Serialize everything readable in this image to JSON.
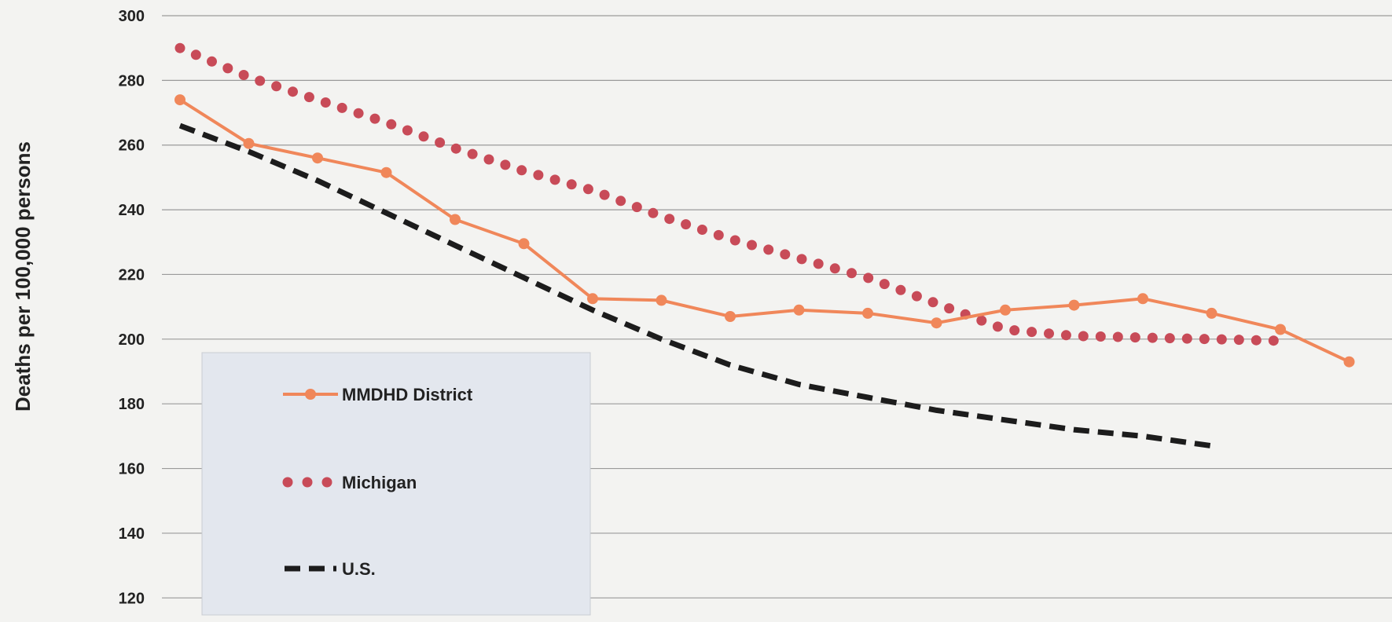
{
  "chart_data": {
    "type": "line",
    "title": "",
    "xlabel": "",
    "ylabel": "Deaths per 100,000 persons",
    "ylim": [
      114,
      300
    ],
    "yticks": [
      120,
      140,
      160,
      180,
      200,
      220,
      240,
      260,
      280,
      300
    ],
    "grid": true,
    "legend_position": "bottom-left",
    "x": [
      1,
      2,
      3,
      4,
      5,
      6,
      7,
      8,
      9,
      10,
      11,
      12,
      13,
      14,
      15,
      16,
      17,
      18
    ],
    "series": [
      {
        "name": "MMDHD District",
        "style": "solid-markers",
        "color": "#f0875a",
        "values": [
          274,
          260.5,
          256,
          251.5,
          237,
          229.5,
          212.5,
          212,
          207,
          209,
          208,
          205,
          209,
          210.5,
          212.5,
          208,
          203,
          193
        ]
      },
      {
        "name": "Michigan",
        "style": "dotted",
        "color": "#c84b58",
        "values": [
          290,
          281,
          274,
          267,
          259,
          252,
          246,
          238,
          231,
          225,
          219,
          211,
          203,
          201,
          200.5,
          200,
          199.5,
          null
        ]
      },
      {
        "name": "U.S.",
        "style": "dashed",
        "color": "#1c1c1c",
        "values": [
          266,
          258,
          249,
          239,
          229,
          219,
          209,
          200,
          192,
          186,
          182,
          178,
          175,
          172,
          170,
          167,
          null,
          null
        ]
      }
    ]
  }
}
